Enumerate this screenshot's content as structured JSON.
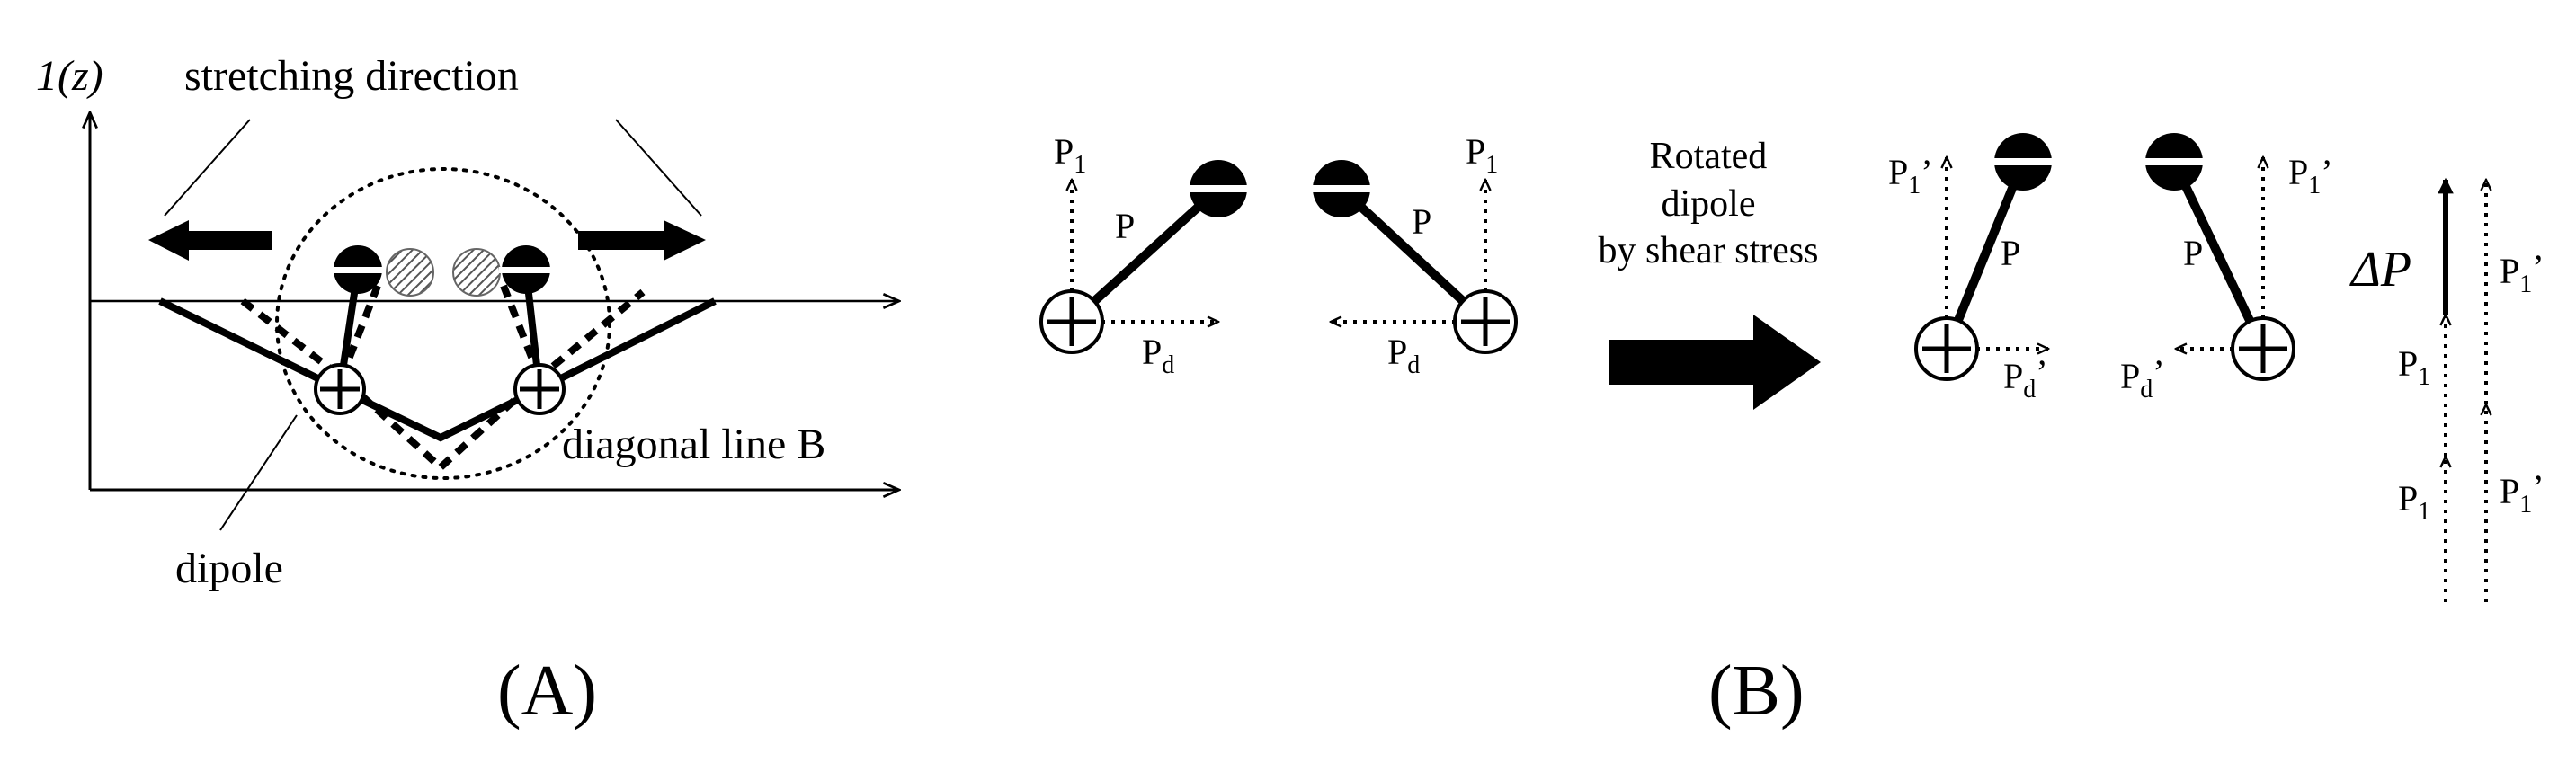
{
  "panel_a": {
    "caption": "(A)",
    "axis_label": "1(z)",
    "stretching_label": "stretching direction",
    "diagonal_label": "diagonal line B",
    "dipole_label": "dipole"
  },
  "panel_b": {
    "caption": "(B)",
    "left_pair": {
      "p1": "P",
      "p1_sub": "1",
      "p": "P",
      "pd": "P",
      "pd_sub": "d"
    },
    "rotated_lines": [
      "Rotated",
      "dipole",
      "by shear stress"
    ],
    "right_pair": {
      "p1": "P",
      "p1_sub": "1",
      "p1_prime": "’",
      "p": "P",
      "pd": "P",
      "pd_sub": "d",
      "pd_prime": "’"
    },
    "delta": {
      "delta_p": "ΔP",
      "p1": "P",
      "p1_sub": "1",
      "p1_prime_label": "P",
      "p1_prime_sub": "1",
      "prime": "’"
    }
  }
}
